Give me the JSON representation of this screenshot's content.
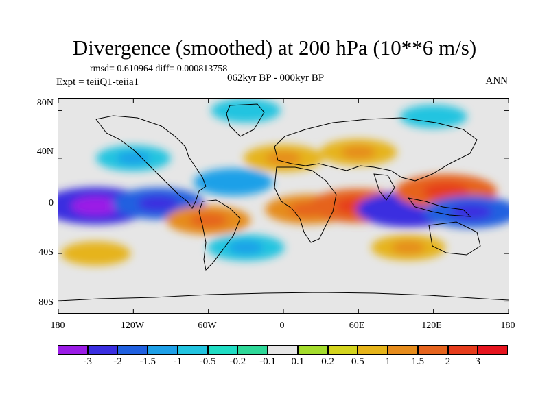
{
  "title": "Divergence (smoothed) at 200 hPa (10**6 m/s)",
  "stats": "rmsd= 0.610964 diff= 0.000813758",
  "experiment": "Expt = teiiQ1-teiia1",
  "period": "062kyr BP - 000kyr BP",
  "season": "ANN",
  "axes": {
    "lat_labels": [
      "80N",
      "40N",
      "0",
      "40S",
      "80S"
    ],
    "lat_values": [
      80,
      40,
      0,
      -40,
      -80
    ],
    "lon_labels": [
      "180",
      "120W",
      "60W",
      "0",
      "60E",
      "120E",
      "180"
    ],
    "lon_values": [
      -180,
      -120,
      -60,
      0,
      60,
      120,
      180
    ],
    "lat_range": [
      -90,
      90
    ],
    "lon_range": [
      -180,
      180
    ]
  },
  "colorbar": {
    "labels": [
      "-3",
      "-2",
      "-1.5",
      "-1",
      "-0.5",
      "-0.2",
      "-0.1",
      "0.1",
      "0.2",
      "0.5",
      "1",
      "1.5",
      "2",
      "3"
    ],
    "colors": [
      "#9b1ce6",
      "#3a2ee0",
      "#2060e0",
      "#1ea0e8",
      "#22c4e0",
      "#20ddc4",
      "#2ed898",
      "#e6e6e6",
      "#a4dc2c",
      "#d4d41e",
      "#e6b41a",
      "#e68c1c",
      "#e6641e",
      "#e63c1c",
      "#e6141e"
    ]
  },
  "fields": [
    {
      "lon": -150,
      "lat": 0,
      "value": -2.2
    },
    {
      "lon": -100,
      "lat": 2,
      "value": -1.5
    },
    {
      "lon": -60,
      "lat": -12,
      "value": 1.2
    },
    {
      "lon": -40,
      "lat": 20,
      "value": -1.0
    },
    {
      "lon": 20,
      "lat": -3,
      "value": 1.3
    },
    {
      "lon": 60,
      "lat": 0,
      "value": 1.8
    },
    {
      "lon": 100,
      "lat": -3,
      "value": -2.0
    },
    {
      "lon": 130,
      "lat": 12,
      "value": 1.9
    },
    {
      "lon": 150,
      "lat": -5,
      "value": -1.6
    },
    {
      "lon": 0,
      "lat": 40,
      "value": 1.0
    },
    {
      "lon": -120,
      "lat": 40,
      "value": -0.8
    },
    {
      "lon": 60,
      "lat": 45,
      "value": 0.9
    },
    {
      "lon": -30,
      "lat": -35,
      "value": -0.9
    },
    {
      "lon": 100,
      "lat": -35,
      "value": 0.8
    },
    {
      "lon": -150,
      "lat": -40,
      "value": 0.6
    },
    {
      "lon": -30,
      "lat": 80,
      "value": -0.6
    },
    {
      "lon": 120,
      "lat": 75,
      "value": -0.5
    }
  ]
}
